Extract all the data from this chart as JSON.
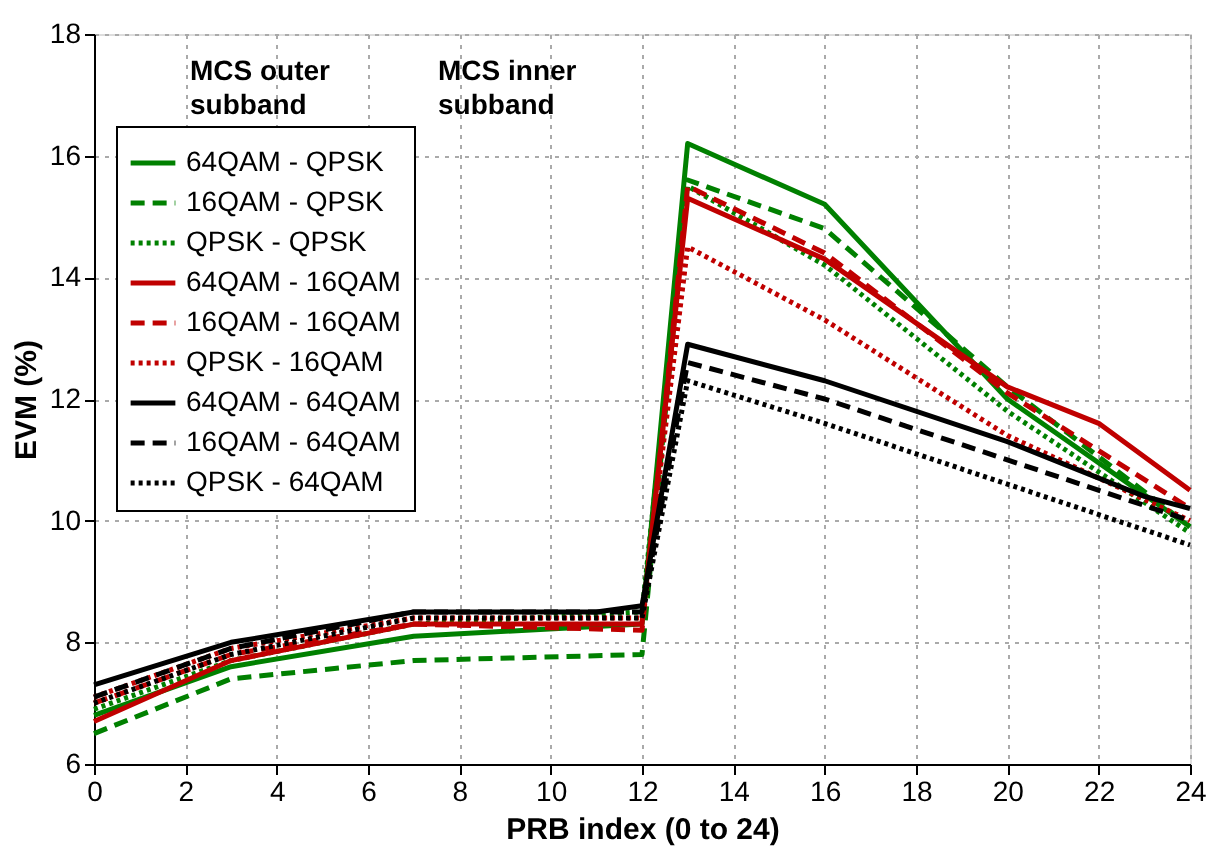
{
  "chart_data": {
    "type": "line",
    "xlabel": "PRB index (0 to 24)",
    "ylabel": "EVM (%)",
    "xlim": [
      0,
      24
    ],
    "xticks": [
      0,
      2,
      4,
      6,
      8,
      10,
      12,
      14,
      16,
      18,
      20,
      22,
      24
    ],
    "ylim": [
      6,
      18
    ],
    "yticks": [
      6,
      8,
      10,
      12,
      14,
      16,
      18
    ],
    "grid": true,
    "legend": "top left",
    "annotations": [
      "MCS outer subband",
      "MCS inner subband"
    ],
    "series": [
      {
        "name": "64QAM - QPSK",
        "color": "#008000",
        "line_style": "solid",
        "x": [
          0,
          3,
          7,
          12,
          13,
          16,
          20,
          24
        ],
        "values": [
          6.8,
          7.6,
          8.1,
          8.3,
          16.2,
          15.2,
          12.0,
          9.9
        ]
      },
      {
        "name": "16QAM - QPSK",
        "color": "#008000",
        "line_style": "dashed",
        "x": [
          0,
          3,
          7,
          12,
          13,
          16,
          20,
          24
        ],
        "values": [
          6.5,
          7.4,
          7.7,
          7.8,
          15.6,
          14.8,
          12.2,
          9.9
        ]
      },
      {
        "name": "QPSK - QPSK",
        "color": "#008000",
        "line_style": "dotted",
        "x": [
          0,
          3,
          7,
          12,
          13,
          16,
          20,
          24
        ],
        "values": [
          6.9,
          7.7,
          8.3,
          8.5,
          15.5,
          14.2,
          11.8,
          9.8
        ]
      },
      {
        "name": "64QAM - 16QAM",
        "color": "#c00000",
        "line_style": "solid",
        "x": [
          0,
          3,
          7,
          12,
          13,
          16,
          20,
          22,
          24
        ],
        "values": [
          6.7,
          7.7,
          8.3,
          8.3,
          15.3,
          14.3,
          12.2,
          11.6,
          10.5
        ]
      },
      {
        "name": "16QAM - 16QAM",
        "color": "#c00000",
        "line_style": "dashed",
        "x": [
          0,
          3,
          7,
          12,
          13,
          16,
          20,
          24
        ],
        "values": [
          7.0,
          7.8,
          8.3,
          8.2,
          15.5,
          14.4,
          12.1,
          10.2
        ]
      },
      {
        "name": "QPSK - 16QAM",
        "color": "#c00000",
        "line_style": "dotted",
        "x": [
          0,
          3,
          7,
          12,
          13,
          16,
          20,
          24
        ],
        "values": [
          7.1,
          7.9,
          8.4,
          8.4,
          14.5,
          13.3,
          11.4,
          10.0
        ]
      },
      {
        "name": "64QAM - 64QAM",
        "color": "#000000",
        "line_style": "solid",
        "x": [
          0,
          3,
          7,
          11,
          12,
          13,
          16,
          20,
          23,
          24
        ],
        "values": [
          7.3,
          8.0,
          8.5,
          8.5,
          8.6,
          12.9,
          12.3,
          11.3,
          10.4,
          10.2
        ]
      },
      {
        "name": "16QAM - 64QAM",
        "color": "#000000",
        "line_style": "dashed",
        "x": [
          0,
          3,
          7,
          12,
          13,
          16,
          20,
          24
        ],
        "values": [
          7.1,
          7.9,
          8.5,
          8.5,
          12.6,
          12.0,
          11.0,
          10.0
        ]
      },
      {
        "name": "QPSK - 64QAM",
        "color": "#000000",
        "line_style": "dotted",
        "x": [
          0,
          3,
          7,
          12,
          13,
          16,
          20,
          24
        ],
        "values": [
          7.0,
          7.8,
          8.4,
          8.4,
          12.3,
          11.6,
          10.6,
          9.6
        ]
      }
    ]
  }
}
